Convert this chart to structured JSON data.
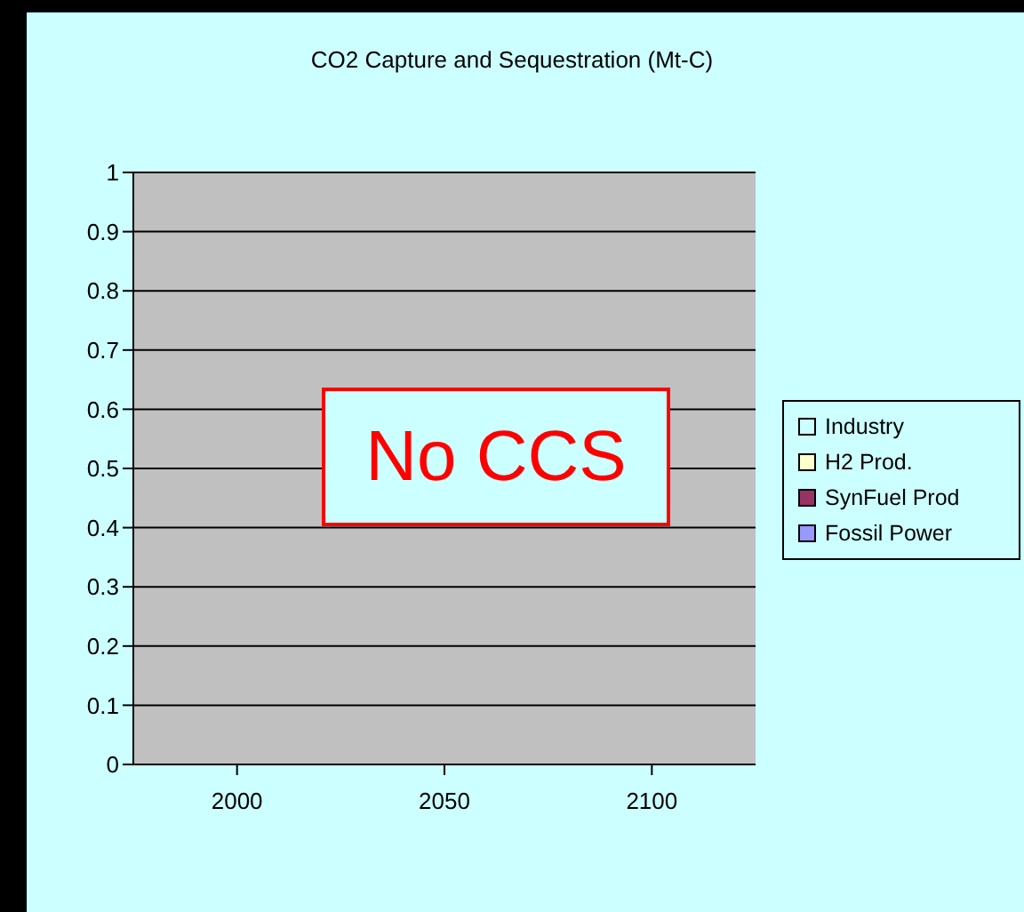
{
  "chart_data": {
    "type": "bar",
    "title": "CO2 Capture and Sequestration (Mt-C)",
    "categories": [
      "2000",
      "2050",
      "2100"
    ],
    "series": [
      {
        "name": "Industry",
        "color": "#ccffff",
        "values": [
          0,
          0,
          0
        ]
      },
      {
        "name": "H2 Prod.",
        "color": "#ffffcc",
        "values": [
          0,
          0,
          0
        ]
      },
      {
        "name": "SynFuel Prod",
        "color": "#993366",
        "values": [
          0,
          0,
          0
        ]
      },
      {
        "name": "Fossil Power",
        "color": "#9999ff",
        "values": [
          0,
          0,
          0
        ]
      }
    ],
    "ylim": [
      0,
      1
    ],
    "yticks": [
      0,
      0.1,
      0.2,
      0.3,
      0.4,
      0.5,
      0.6,
      0.7,
      0.8,
      0.9,
      1
    ],
    "grid": "y",
    "legend": "right",
    "annotations": [
      "No CCS"
    ]
  }
}
